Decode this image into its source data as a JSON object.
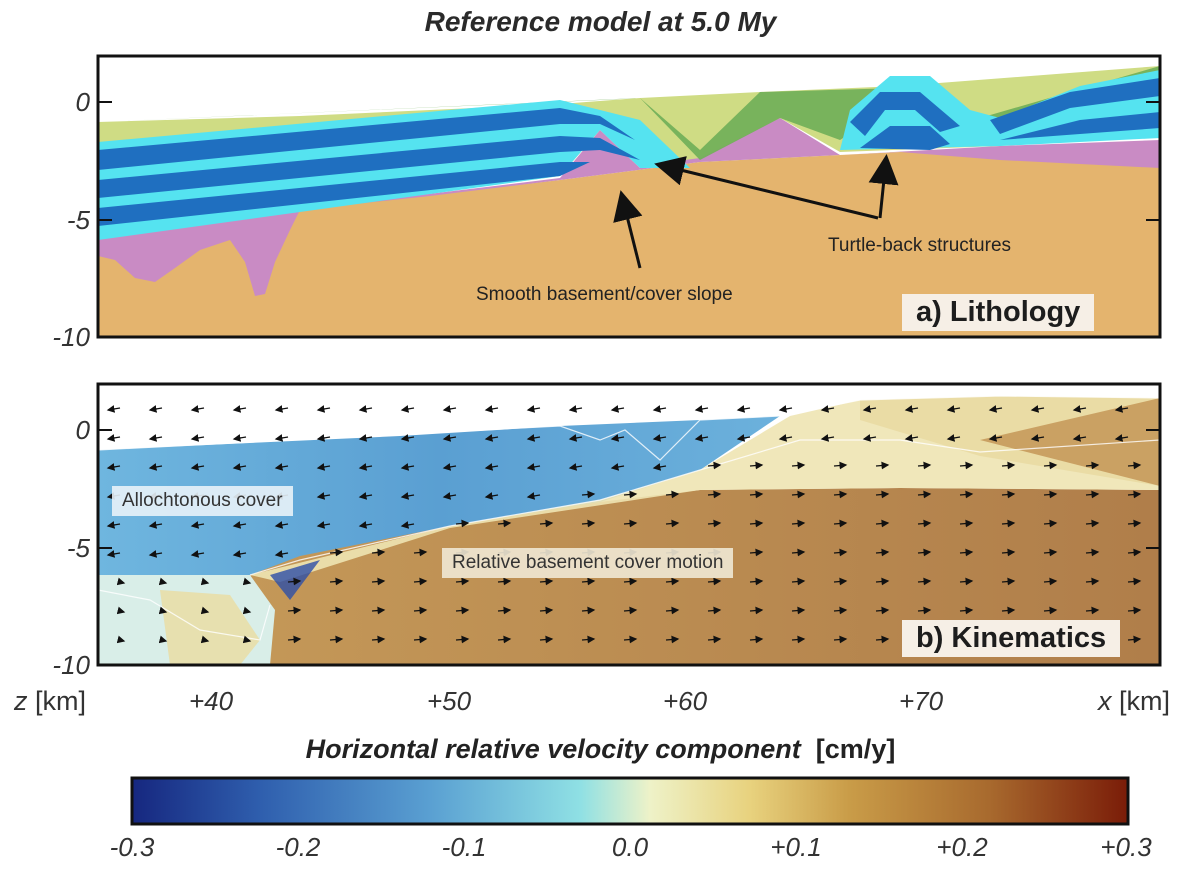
{
  "figure": {
    "title": "Reference model at 5.0 My"
  },
  "panel_a": {
    "label": "a) Lithology",
    "annotation_smooth": "Smooth basement/cover slope",
    "annotation_turtle": "Turtle-back structures"
  },
  "panel_b": {
    "label": "b) Kinematics",
    "label_cover": "Allochtonous cover",
    "label_motion": "Relative basement cover  motion"
  },
  "axes": {
    "y_ticks": [
      "0",
      "-5",
      "-10"
    ],
    "x_ticks": [
      "+40",
      "+50",
      "+60",
      "+70"
    ],
    "z_label_var": "z",
    "z_label_unit": "[km]",
    "x_label_var": "x",
    "x_label_unit": "[km]"
  },
  "colorbar": {
    "title_main": "Horizontal relative velocity component",
    "title_unit": "[cm/y]",
    "ticks": [
      "-0.3",
      "-0.2",
      "-0.1",
      "0.0",
      "+0.1",
      "+0.2",
      "+0.3"
    ]
  },
  "colors": {
    "basement": "#e4b46e",
    "purple": "#c98bc4",
    "blue_dark": "#1f6fc0",
    "blue_light": "#55e3f0",
    "green": "#73b05a",
    "yellow_green": "#cfdc84",
    "velocity_negative": "#5aa0d2",
    "velocity_positive": "#b98a52"
  }
}
